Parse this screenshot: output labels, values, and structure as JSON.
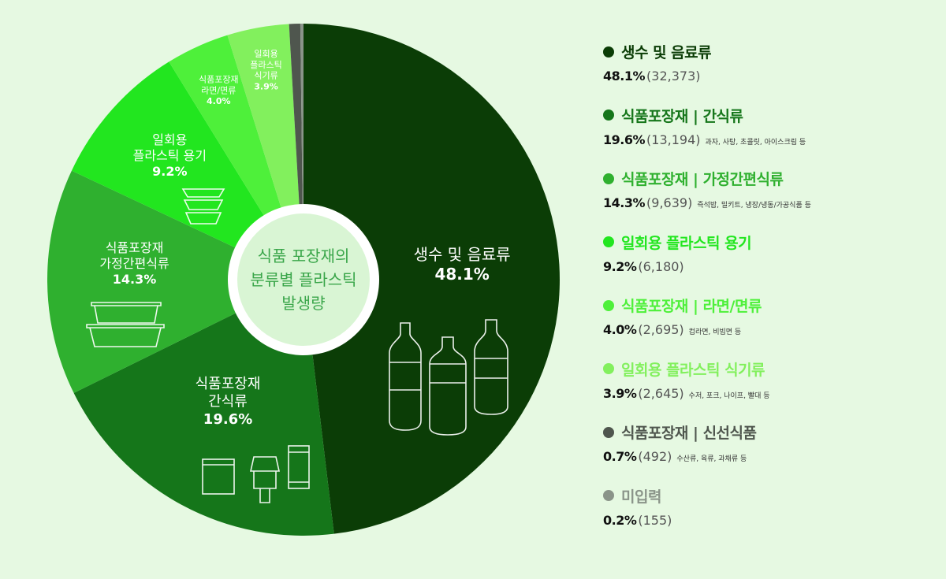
{
  "chart_data": {
    "type": "pie",
    "center_label": [
      "식품 포장재의",
      "분류별 플라스틱",
      "발생량"
    ],
    "slices": [
      {
        "name": "생수 및 음료류",
        "percent": 48.1,
        "count": "32,373",
        "note": "",
        "color": "#0b3d06",
        "legend_color": "#0b3d06",
        "chart_label": [
          "생수 및 음료류",
          "48.1%"
        ]
      },
      {
        "name": "식품포장재 | 간식류",
        "percent": 19.6,
        "count": "13,194",
        "note": "과자, 사탕, 초콜릿, 아이스크림 등",
        "color": "#15761a",
        "legend_color": "#15761a",
        "chart_label": [
          "식품포장재",
          "간식류",
          "19.6%"
        ]
      },
      {
        "name": "식품포장재 | 가정간편식류",
        "percent": 14.3,
        "count": "9,639",
        "note": "즉석밥, 밀키트, 냉장/냉동/가공식품 등",
        "color": "#2fb02f",
        "legend_color": "#2fb02f",
        "chart_label": [
          "식품포장재",
          "가정간편식류",
          "14.3%"
        ]
      },
      {
        "name": "일회용 플라스틱 용기",
        "percent": 9.2,
        "count": "6,180",
        "note": "",
        "color": "#22e61f",
        "legend_color": "#22e61f",
        "chart_label": [
          "일회용",
          "플라스틱 용기",
          "9.2%"
        ]
      },
      {
        "name": "식품포장재 | 라면/면류",
        "percent": 4.0,
        "count": "2,695",
        "note": "컵라면, 비빔면 등",
        "color": "#4ef03a",
        "legend_color": "#4ef03a",
        "chart_label": [
          "식품포장재",
          "라면/면류",
          "4.0%"
        ]
      },
      {
        "name": "일회용 플라스틱 식기류",
        "percent": 3.9,
        "count": "2,645",
        "note": "수저, 포크, 나이프, 빨대 등",
        "color": "#82f05d",
        "legend_color": "#82f05d",
        "chart_label": [
          "일회용",
          "플라스틱",
          "식기류",
          "3.9%"
        ]
      },
      {
        "name": "식품포장재 | 신선식품",
        "percent": 0.7,
        "count": "492",
        "note": "수산류, 육류, 과채류 등",
        "color": "#4f564e",
        "legend_color": "#4f564e",
        "chart_label": []
      },
      {
        "name": "미입력",
        "percent": 0.2,
        "count": "155",
        "note": "",
        "color": "#8a9489",
        "legend_color": "#8a9489",
        "chart_label": []
      }
    ]
  }
}
